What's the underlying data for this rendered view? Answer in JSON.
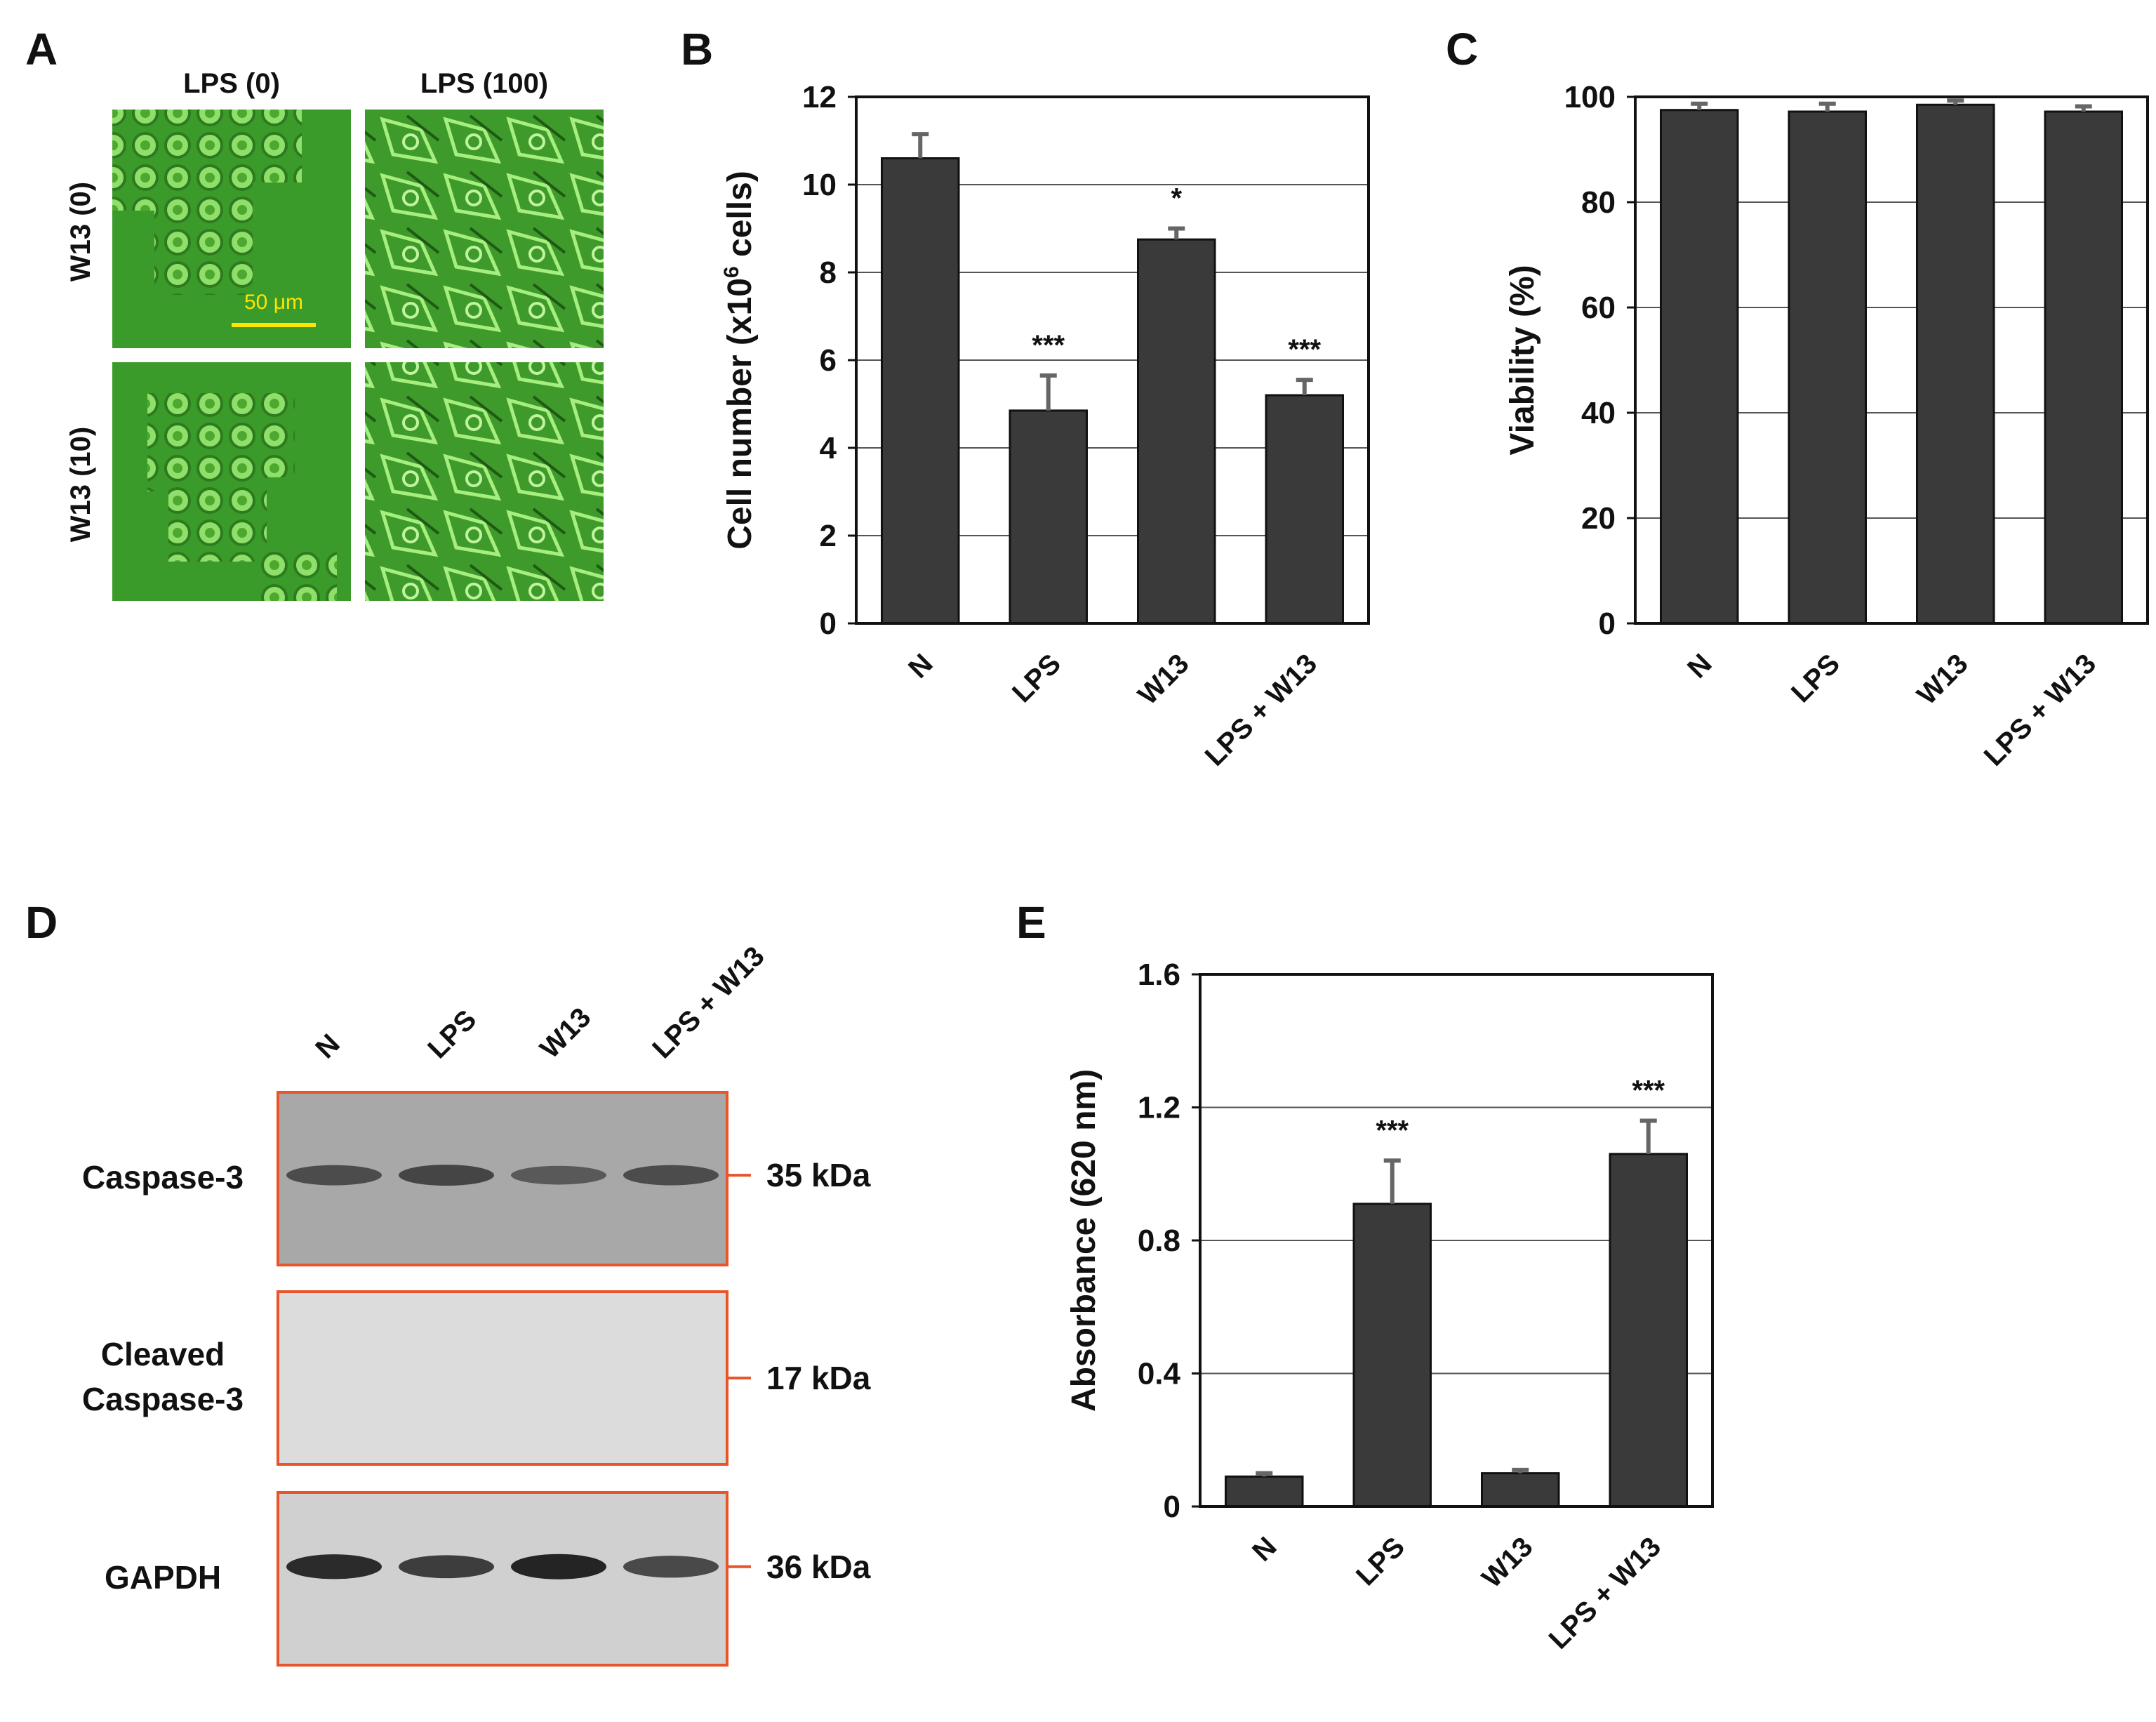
{
  "panels": {
    "A": {
      "letter": "A",
      "columns": [
        "LPS (0)",
        "LPS (100)"
      ],
      "rows": [
        "W13 (0)",
        "W13 (10)"
      ],
      "scale_bar_label": "50 μm",
      "colors": {
        "micrograph_bg": "#3e9a2a",
        "cell": "#7fd45a",
        "scale_bar": "#ffe400"
      }
    },
    "D": {
      "letter": "D",
      "lanes": [
        "N",
        "LPS",
        "W13",
        "LPS + W13"
      ],
      "blots": [
        {
          "label": "Caspase-3",
          "size": "35 kDa",
          "band_intensity": [
            0.55,
            0.62,
            0.42,
            0.55
          ]
        },
        {
          "label": "Cleaved\nCaspase-3",
          "label_lines": [
            "Cleaved",
            "Caspase-3"
          ],
          "size": "17 kDa",
          "band_intensity": [
            0,
            0,
            0,
            0
          ]
        },
        {
          "label": "GAPDH",
          "size": "36 kDa",
          "band_intensity": [
            0.95,
            0.8,
            1.0,
            0.7
          ]
        }
      ],
      "colors": {
        "frame": "#e8552a"
      }
    }
  },
  "chart_data": [
    {
      "panel": "B",
      "type": "bar",
      "title": "",
      "categories": [
        "N",
        "LPS",
        "W13",
        "LPS + W13"
      ],
      "values": [
        10.6,
        4.85,
        8.75,
        5.2
      ],
      "errors": [
        0.55,
        0.8,
        0.25,
        0.35
      ],
      "significance": [
        "",
        "***",
        "*",
        "***"
      ],
      "ylabel": "Cell number (x10⁶ cells)",
      "ylabel_parts": [
        "Cell number (x10",
        "6",
        " cells)"
      ],
      "ylim": [
        0,
        12
      ],
      "yticks": [
        "0",
        "2",
        "4",
        "6",
        "8",
        "10",
        "12"
      ],
      "grid": true,
      "bar_color": "#3a3a3a"
    },
    {
      "panel": "C",
      "type": "bar",
      "title": "",
      "categories": [
        "N",
        "LPS",
        "W13",
        "LPS + W13"
      ],
      "values": [
        97.5,
        97.2,
        98.5,
        97.2
      ],
      "errors": [
        1.2,
        1.5,
        0.8,
        1.0
      ],
      "significance": [
        "",
        "",
        "",
        ""
      ],
      "ylabel": "Viability (%)",
      "ylim": [
        0,
        100
      ],
      "yticks": [
        "0",
        "20",
        "40",
        "60",
        "80",
        "100"
      ],
      "grid": true,
      "bar_color": "#3a3a3a"
    },
    {
      "panel": "E",
      "type": "bar",
      "title": "",
      "categories": [
        "N",
        "LPS",
        "W13",
        "LPS + W13"
      ],
      "values": [
        0.09,
        0.91,
        0.1,
        1.06
      ],
      "errors": [
        0.01,
        0.13,
        0.01,
        0.1
      ],
      "significance": [
        "",
        "***",
        "",
        "***"
      ],
      "ylabel": "Absorbance (620 nm)",
      "ylim": [
        0,
        1.6
      ],
      "yticks": [
        "0",
        "0.4",
        "0.8",
        "1.2",
        "1.6"
      ],
      "grid": true,
      "bar_color": "#3a3a3a"
    }
  ]
}
